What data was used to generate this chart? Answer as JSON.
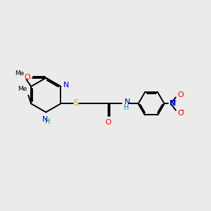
{
  "background_color": "#ebebeb",
  "bond_color": "#000000",
  "atom_colors": {
    "C": "#000000",
    "N": "#0000cc",
    "O": "#ff0000",
    "S": "#ccaa00",
    "H": "#008888"
  },
  "figsize": [
    3.0,
    3.0
  ],
  "dpi": 100,
  "lw": 1.4,
  "fs": 8.0
}
